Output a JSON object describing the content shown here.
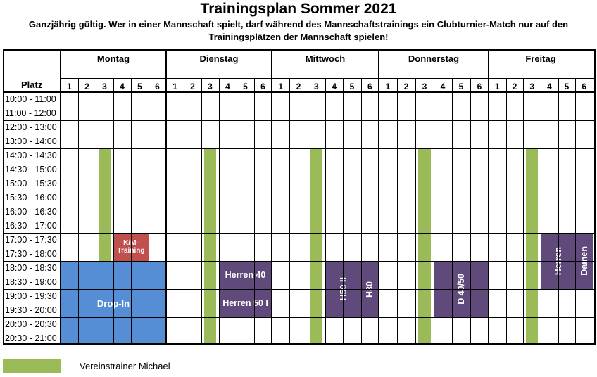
{
  "title": "Trainingsplan Sommer 2021",
  "subtitle_line1": "Ganzjährig gültig. Wer in einer Mannschaft spielt, darf während des Mannschaftstrainings ein Clubturnier-Match nur auf den",
  "subtitle_line2": "Trainingsplätzen der Mannschaft spielen!",
  "platz_label": "Platz",
  "days": [
    "Montag",
    "Dienstag",
    "Mittwoch",
    "Donnerstag",
    "Freitag"
  ],
  "courts": [
    "1",
    "2",
    "3",
    "4",
    "5",
    "6"
  ],
  "times": [
    "10:00 - 11:00",
    "11:00 - 12:00",
    "12:00 - 13:00",
    "13:00 - 14:00",
    "14:00 - 14:30",
    "14:30 - 15:00",
    "15:00 - 15:30",
    "15:30 - 16:00",
    "16:00 - 16:30",
    "16:30 - 17:00",
    "17:00 - 17:30",
    "17:30 - 18:00",
    "18:00 - 18:30",
    "18:30 - 19:00",
    "19:00 - 19:30",
    "19:30 - 20:00",
    "20:00 - 20:30",
    "20:30 - 21:00"
  ],
  "blocks": [
    {
      "label": "K/M-Training",
      "lines": [
        "K/M-",
        "Training"
      ],
      "color": "#c0504d"
    },
    {
      "label": "Drop-In",
      "color": "#558ed5"
    },
    {
      "label": "Herren 40",
      "color": "#604a7b"
    },
    {
      "label": "Herren 50 I",
      "color": "#604a7b"
    },
    {
      "label": "H50 II",
      "color": "#604a7b"
    },
    {
      "label": "H30",
      "color": "#604a7b"
    },
    {
      "label": "D 40/50",
      "color": "#604a7b"
    },
    {
      "label": "Herren",
      "color": "#604a7b"
    },
    {
      "label": "Damen",
      "color": "#604a7b"
    }
  ],
  "legend": {
    "label": "Vereinstrainer Michael",
    "color": "#9bbb59"
  },
  "colors": {
    "green": "#9bbb59",
    "blue": "#558ed5",
    "red": "#c0504d",
    "purple": "#604a7b"
  }
}
